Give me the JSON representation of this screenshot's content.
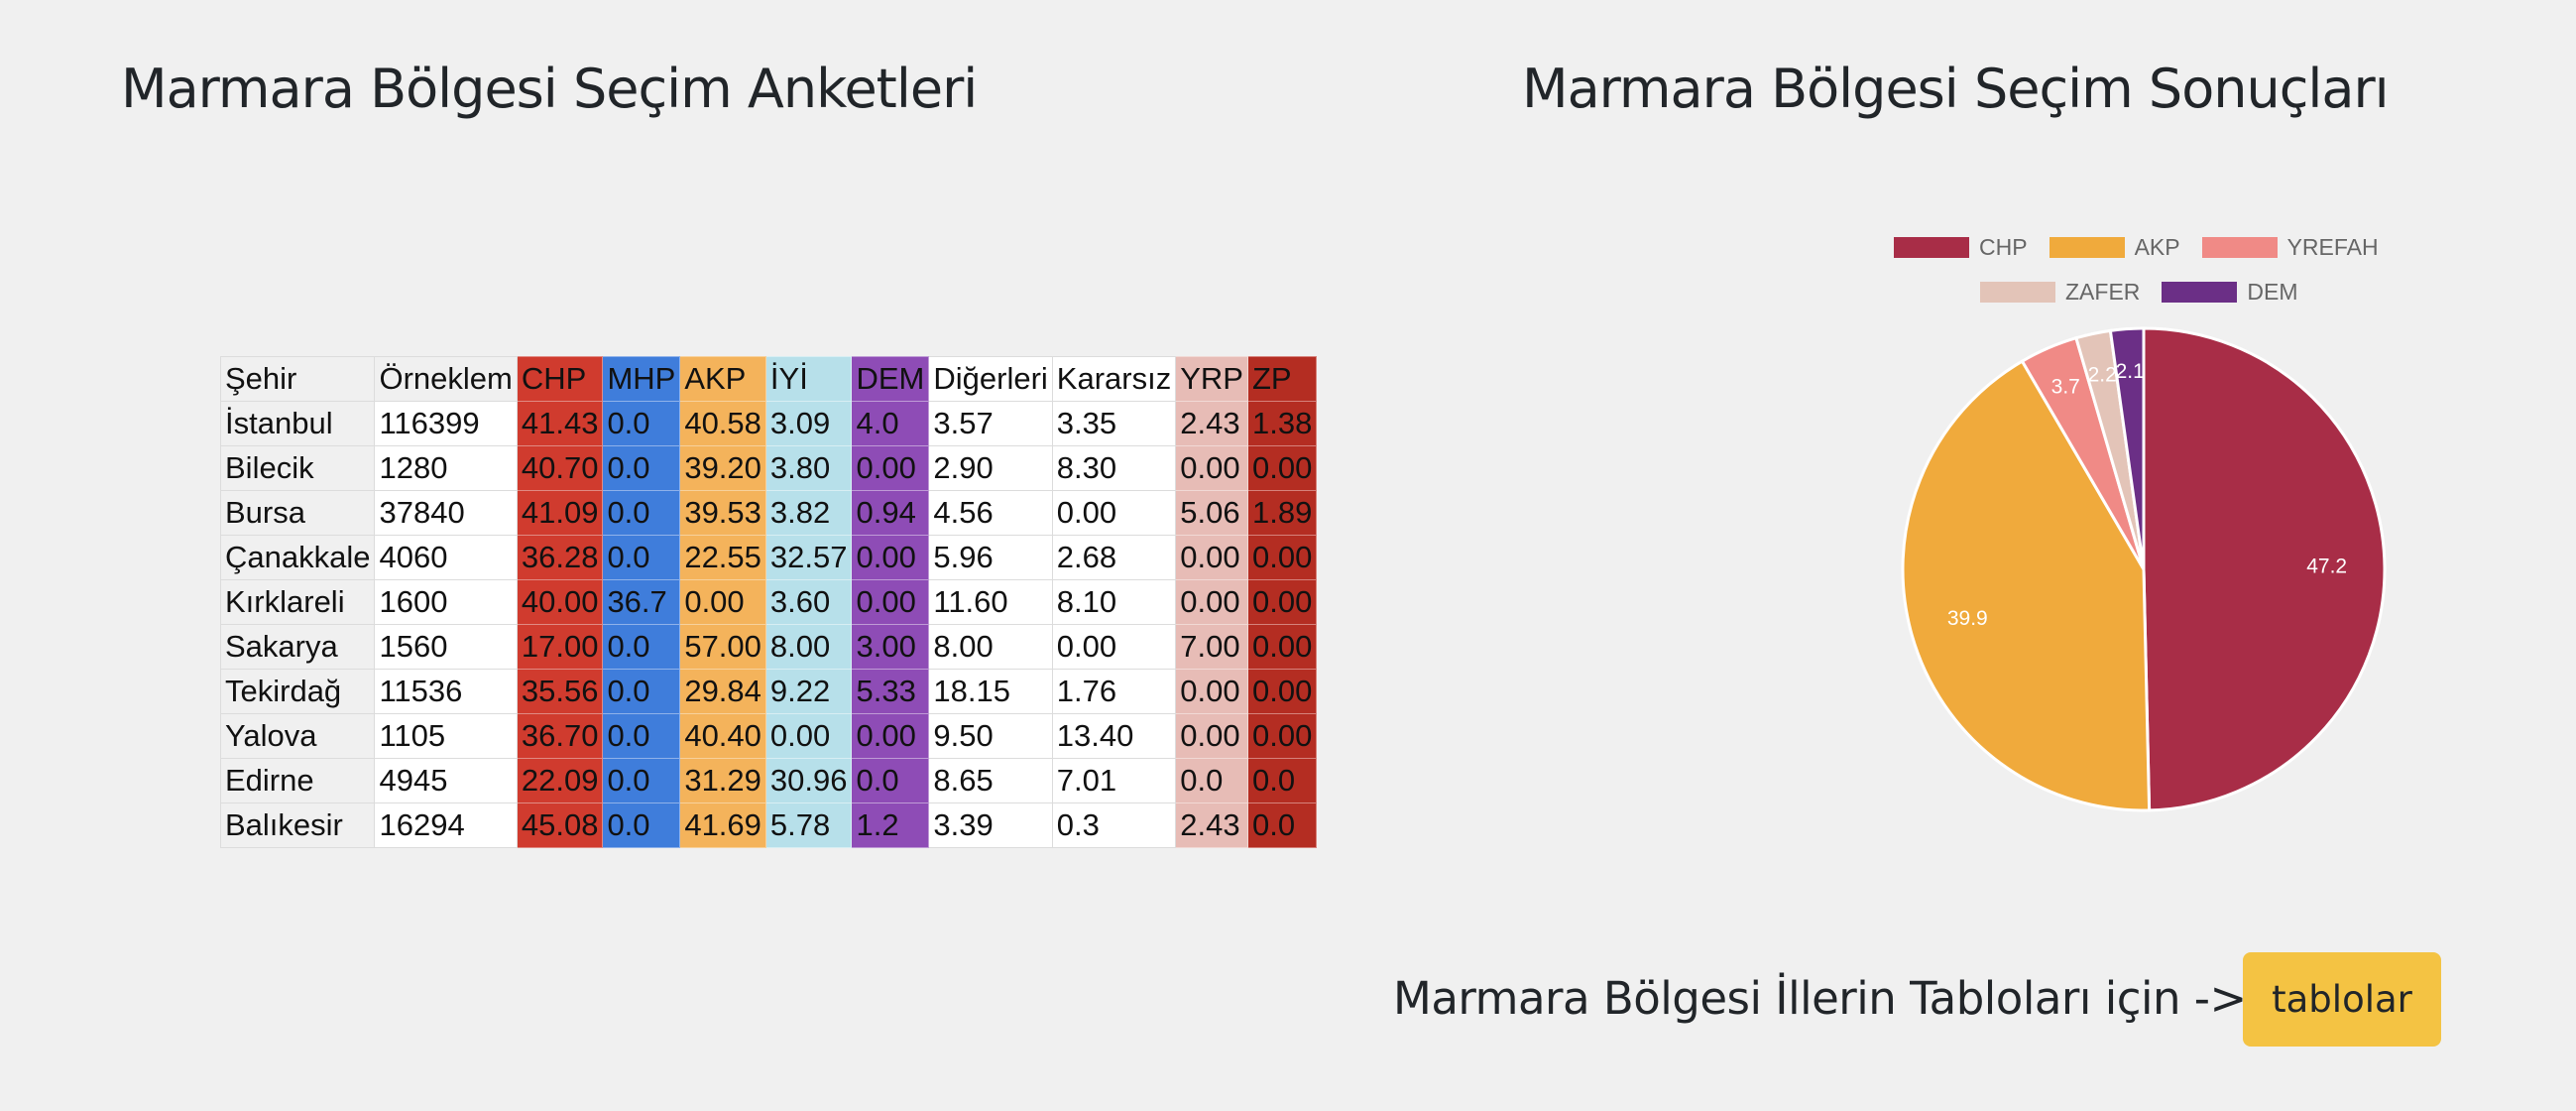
{
  "titles": {
    "polls": "Marmara Bölgesi Seçim Anketleri",
    "results": "Marmara Bölgesi Seçim Sonuçları"
  },
  "table": {
    "headers": [
      "Şehir",
      "Örneklem",
      "CHP",
      "MHP",
      "AKP",
      "İYİ",
      "DEM",
      "Diğerleri",
      "Kararsız",
      "YRP",
      "ZP"
    ],
    "header_colors": [
      "base",
      "base",
      "chp",
      "mhp",
      "akp",
      "iyi",
      "dem",
      "plain",
      "plain",
      "yrp",
      "zp"
    ],
    "column_colors": [
      "base",
      "plain",
      "chp",
      "mhp",
      "akp",
      "iyi",
      "dem",
      "plain",
      "plain",
      "yrp",
      "zp"
    ],
    "rows": [
      [
        "İstanbul",
        "116399",
        "41.43",
        "0.0",
        "40.58",
        "3.09",
        "4.0",
        "3.57",
        "3.35",
        "2.43",
        "1.38"
      ],
      [
        "Bilecik",
        "1280",
        "40.70",
        "0.0",
        "39.20",
        "3.80",
        "0.00",
        "2.90",
        "8.30",
        "0.00",
        "0.00"
      ],
      [
        "Bursa",
        "37840",
        "41.09",
        "0.0",
        "39.53",
        "3.82",
        "0.94",
        "4.56",
        "0.00",
        "5.06",
        "1.89"
      ],
      [
        "Çanakkale",
        "4060",
        "36.28",
        "0.0",
        "22.55",
        "32.57",
        "0.00",
        "5.96",
        "2.68",
        "0.00",
        "0.00"
      ],
      [
        "Kırklareli",
        "1600",
        "40.00",
        "36.7",
        "0.00",
        "3.60",
        "0.00",
        "11.60",
        "8.10",
        "0.00",
        "0.00"
      ],
      [
        "Sakarya",
        "1560",
        "17.00",
        "0.0",
        "57.00",
        "8.00",
        "3.00",
        "8.00",
        "0.00",
        "7.00",
        "0.00"
      ],
      [
        "Tekirdağ",
        "11536",
        "35.56",
        "0.0",
        "29.84",
        "9.22",
        "5.33",
        "18.15",
        "1.76",
        "0.00",
        "0.00"
      ],
      [
        "Yalova",
        "1105",
        "36.70",
        "0.0",
        "40.40",
        "0.00",
        "0.00",
        "9.50",
        "13.40",
        "0.00",
        "0.00"
      ],
      [
        "Edirne",
        "4945",
        "22.09",
        "0.0",
        "31.29",
        "30.96",
        "0.0",
        "8.65",
        "7.01",
        "0.0",
        "0.0"
      ],
      [
        "Balıkesir",
        "16294",
        "45.08",
        "0.0",
        "41.69",
        "5.78",
        "1.2",
        "3.39",
        "0.3",
        "2.43",
        "0.0"
      ]
    ]
  },
  "chart_data": {
    "type": "pie",
    "title": "",
    "legend_placement": "top",
    "labels": [
      "CHP",
      "AKP",
      "YREFAH",
      "ZAFER",
      "DEM"
    ],
    "values": [
      47.2,
      39.9,
      3.7,
      2.2,
      2.1
    ],
    "data_labels": [
      "47.2",
      "39.9",
      "3.7",
      "2.2",
      "2.1"
    ],
    "colors": [
      "#a82d47",
      "#f0aa3c",
      "#f08a86",
      "#e3c4b8",
      "#6b2f86"
    ]
  },
  "footer": {
    "text": "Marmara Bölgesi İllerin Tabloları için ->",
    "button_label": "tablolar"
  }
}
